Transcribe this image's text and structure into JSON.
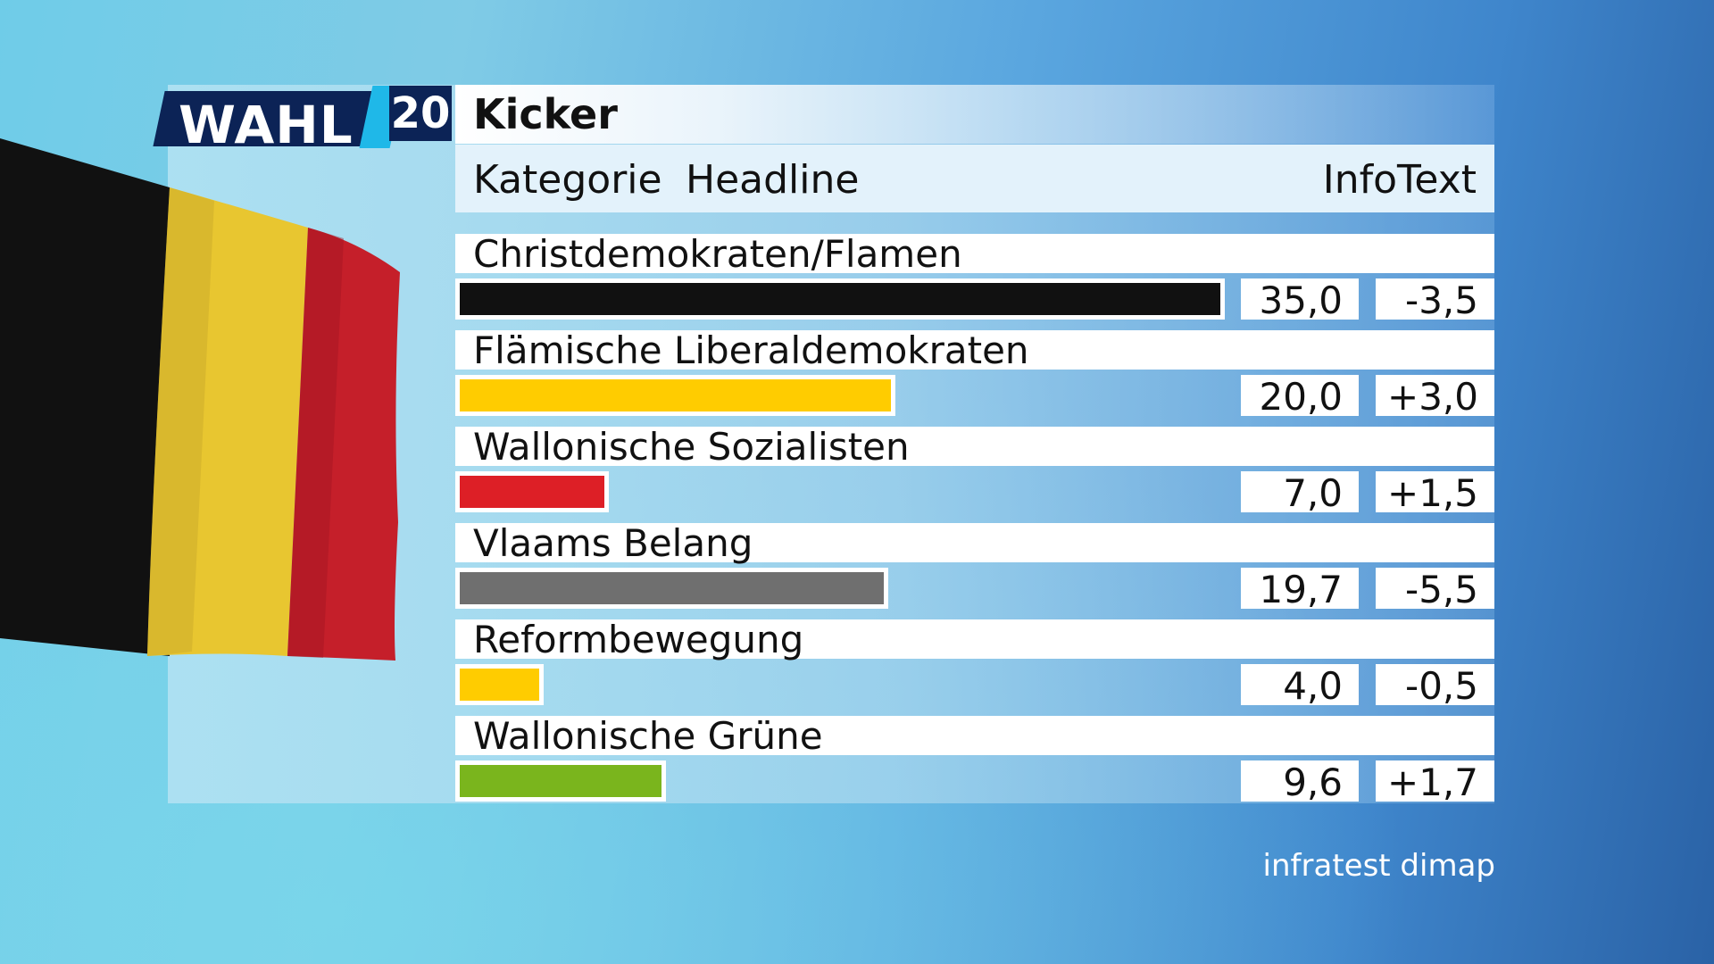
{
  "logo": {
    "word": "WAHL",
    "number": "20"
  },
  "header": {
    "title": "Kicker",
    "category": "Kategorie",
    "headline": "Headline",
    "infotext": "InfoText"
  },
  "chart_data": {
    "type": "bar",
    "orientation": "horizontal",
    "xlim": [
      0,
      35
    ],
    "categories": [
      "Christdemokraten/Flamen",
      "Flämische Liberaldemokraten",
      "Wallonische Sozialisten",
      "Vlaams Belang",
      "Reformbewegung",
      "Wallonische Grüne"
    ],
    "values": [
      35.0,
      20.0,
      7.0,
      19.7,
      4.0,
      9.6
    ],
    "value_labels": [
      "35,0",
      "20,0",
      "7,0",
      "19,7",
      "4,0",
      "9,6"
    ],
    "change_labels": [
      "-3,5",
      "+3,0",
      "+1,5",
      "-5,5",
      "-0,5",
      "+1,7"
    ],
    "colors": [
      "#111111",
      "#ffcc00",
      "#dd1f26",
      "#6f6f6f",
      "#ffcc00",
      "#7ab51d"
    ]
  },
  "source": "infratest dimap"
}
